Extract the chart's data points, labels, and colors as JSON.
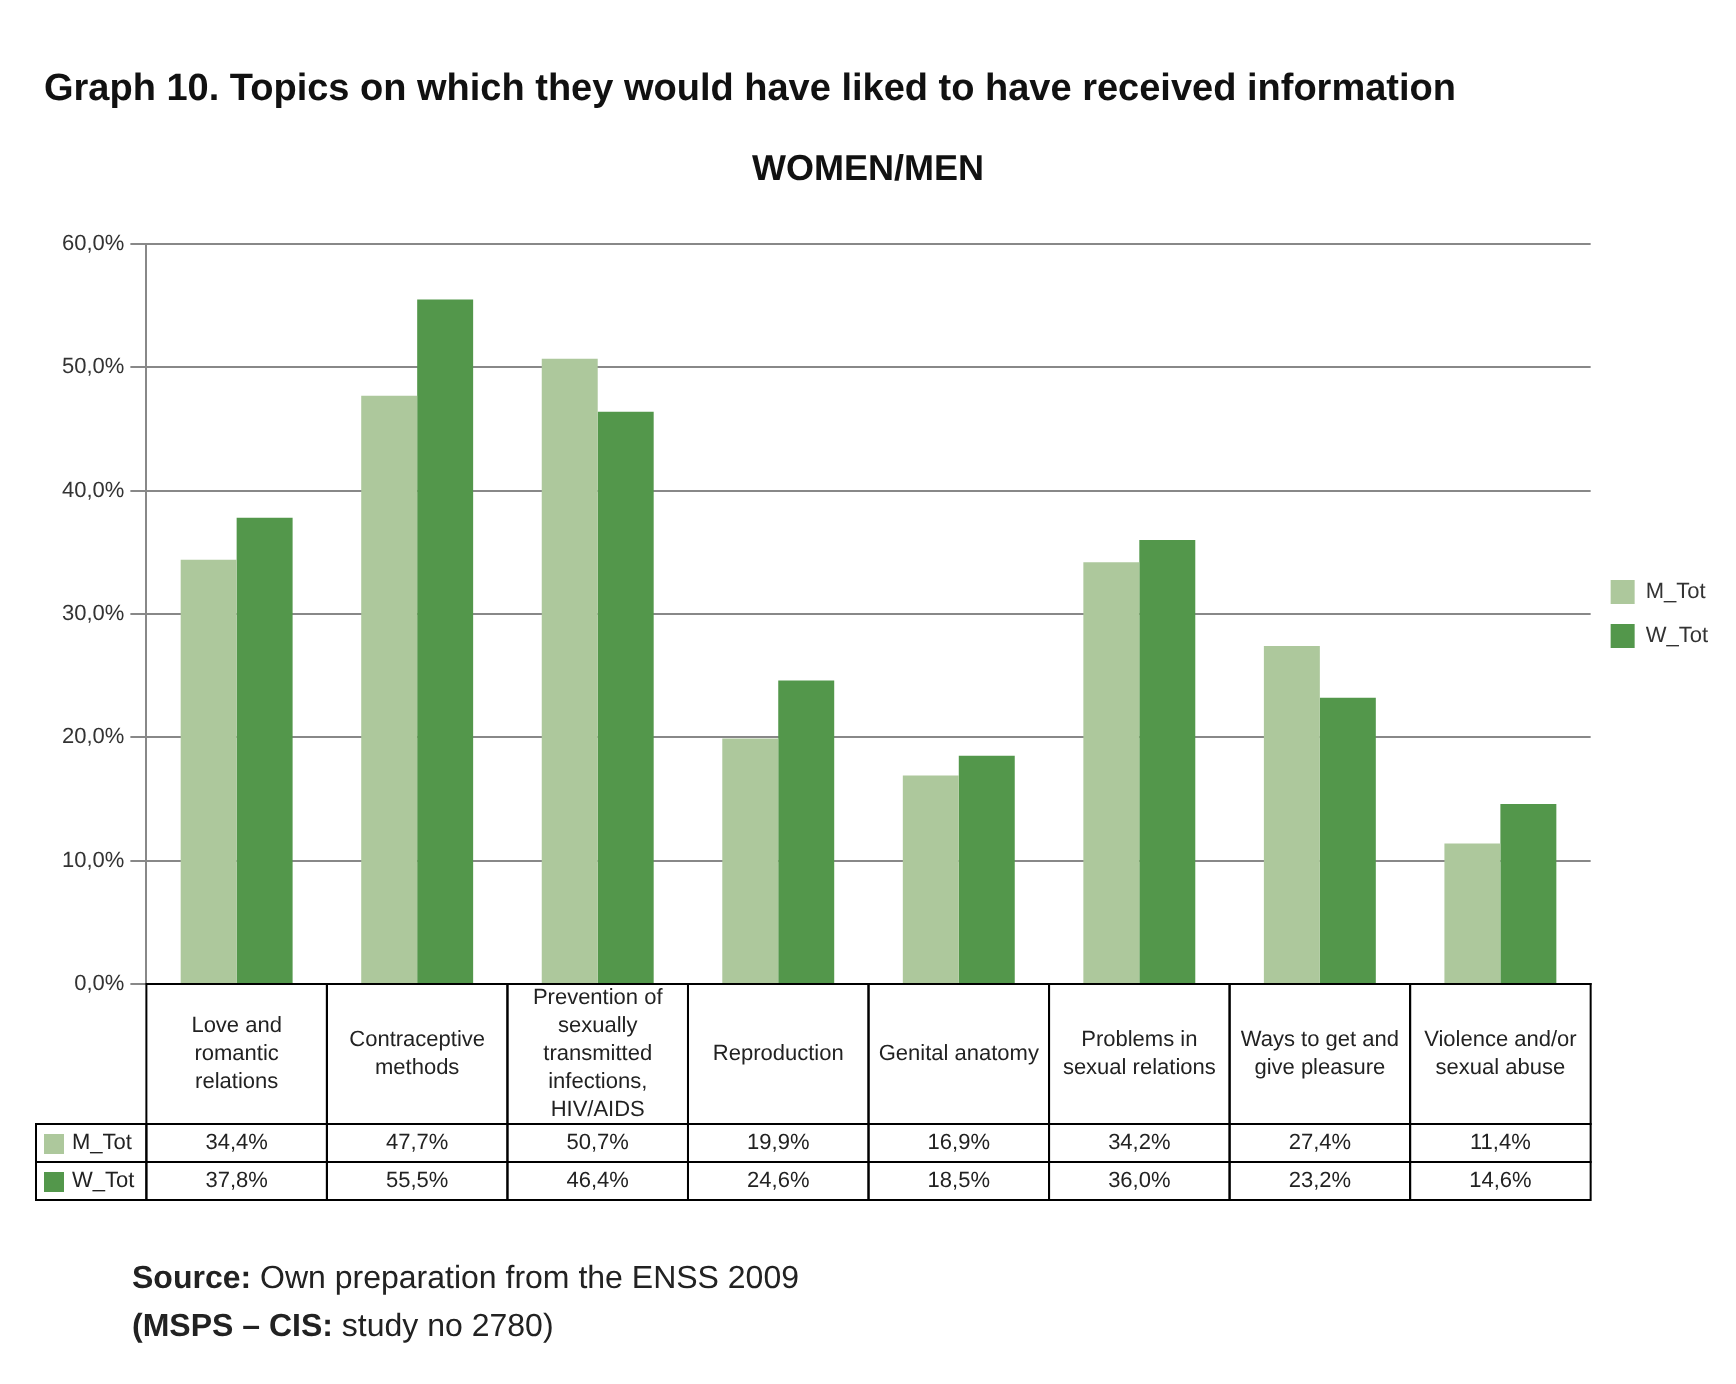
{
  "chart_data": {
    "type": "bar",
    "title": "Graph 10. Topics on which they would have liked to have received information",
    "subtitle": "WOMEN/MEN",
    "categories": [
      "Love and romantic relations",
      "Contraceptive methods",
      "Prevention of sexually transmitted infections, HIV/AIDS",
      "Reproduction",
      "Genital anatomy",
      "Problems in sexual relations",
      "Ways to get and give pleasure",
      "Violence and/or sexual abuse"
    ],
    "series": [
      {
        "name": "M_Tot",
        "color": "#adc89c",
        "values": [
          34.4,
          47.7,
          50.7,
          19.9,
          16.9,
          34.2,
          27.4,
          11.4
        ],
        "value_labels": [
          "34,4%",
          "47,7%",
          "50,7%",
          "19,9%",
          "16,9%",
          "34,2%",
          "27,4%",
          "11,4%"
        ]
      },
      {
        "name": "W_Tot",
        "color": "#53974b",
        "values": [
          37.8,
          55.5,
          46.4,
          24.6,
          18.5,
          36.0,
          23.2,
          14.6
        ],
        "value_labels": [
          "37,8%",
          "55,5%",
          "46,4%",
          "24,6%",
          "18,5%",
          "36,0%",
          "23,2%",
          "14,6%"
        ]
      }
    ],
    "ylim": [
      0,
      60
    ],
    "yticks": [
      {
        "value": 0,
        "label": "0,0%"
      },
      {
        "value": 10,
        "label": "10,0%"
      },
      {
        "value": 20,
        "label": "20,0%"
      },
      {
        "value": 30,
        "label": "30,0%"
      },
      {
        "value": 40,
        "label": "40,0%"
      },
      {
        "value": 50,
        "label": "50,0%"
      },
      {
        "value": 60,
        "label": "60,0%"
      }
    ],
    "grid": "y",
    "legend": "right",
    "annotations": [
      "Source: Own preparation from the ENSS 2009",
      "(MSPS – CIS: study no 2780)"
    ]
  }
}
